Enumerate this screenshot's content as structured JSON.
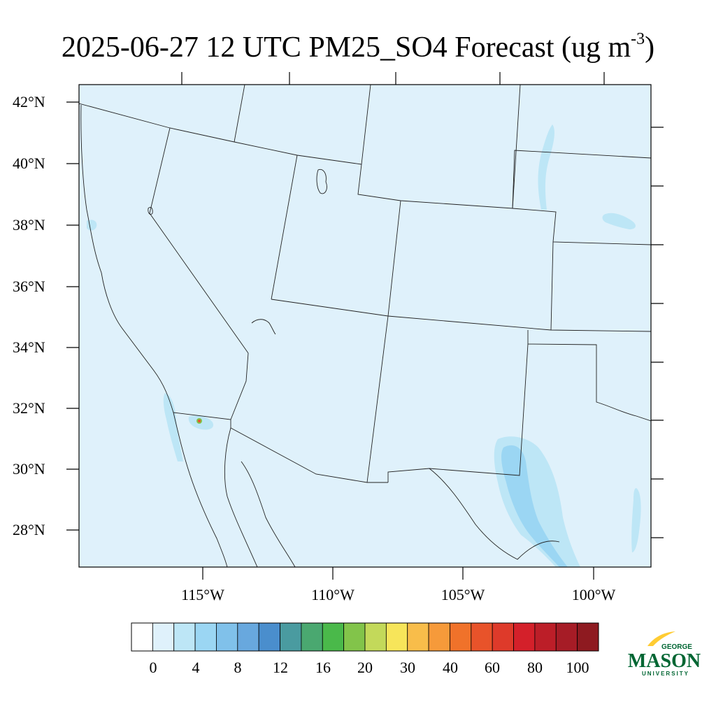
{
  "title": {
    "text": "2025-06-27 12 UTC PM25_SO4 Forecast (ug m",
    "superscript": "-3",
    "suffix": ")"
  },
  "map": {
    "background_color": "#dff1fb",
    "lat_labels": [
      "42°N",
      "40°N",
      "38°N",
      "36°N",
      "34°N",
      "32°N",
      "30°N",
      "28°N"
    ],
    "lon_labels": [
      "115°W",
      "110°W",
      "105°W",
      "100°W"
    ]
  },
  "colorbar": {
    "labels": [
      "0",
      "4",
      "8",
      "12",
      "16",
      "20",
      "30",
      "40",
      "60",
      "80",
      "100"
    ],
    "colors": [
      "#ffffff",
      "#dff1fb",
      "#bde6f6",
      "#9bd6f3",
      "#80c1ea",
      "#68a8de",
      "#4a8ecd",
      "#4a9ba0",
      "#4aa870",
      "#4ab94a",
      "#82c44a",
      "#c3d95a",
      "#f7e55a",
      "#f8bd4a",
      "#f69a3a",
      "#f0722a",
      "#e8532a",
      "#de3a2a",
      "#d4202a",
      "#bc1e28",
      "#a61c26",
      "#8e1a20"
    ]
  },
  "logo": {
    "line1": "GEORGE",
    "line2": "MASON",
    "line3": "UNIVERSITY",
    "primary_color": "#006633",
    "accent_color": "#ffcc33"
  }
}
